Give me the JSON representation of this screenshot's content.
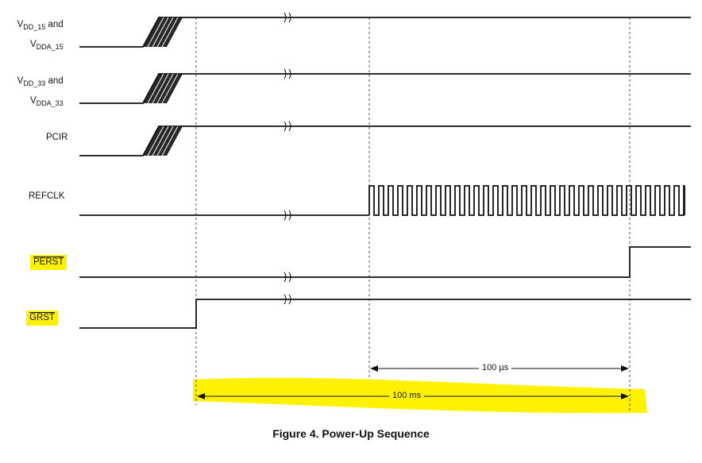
{
  "signals": {
    "vdd15": {
      "prefix": "V",
      "sub": "DD_15",
      "suffix": " and",
      "prefix2": "V",
      "sub2": "DDA_15"
    },
    "vdd33": {
      "prefix": "V",
      "sub": "DD_33",
      "suffix": " and",
      "prefix2": "V",
      "sub2": "DDA_33"
    },
    "pcir": "PCIR",
    "refclk": "REFCLK",
    "perst": "PERST",
    "grst": "GRST"
  },
  "measurements": {
    "short": "100 µs",
    "long": "100 ms"
  },
  "caption": "Figure 4.  Power-Up Sequence",
  "colors": {
    "highlight": "#fff200",
    "line": "#111111"
  }
}
